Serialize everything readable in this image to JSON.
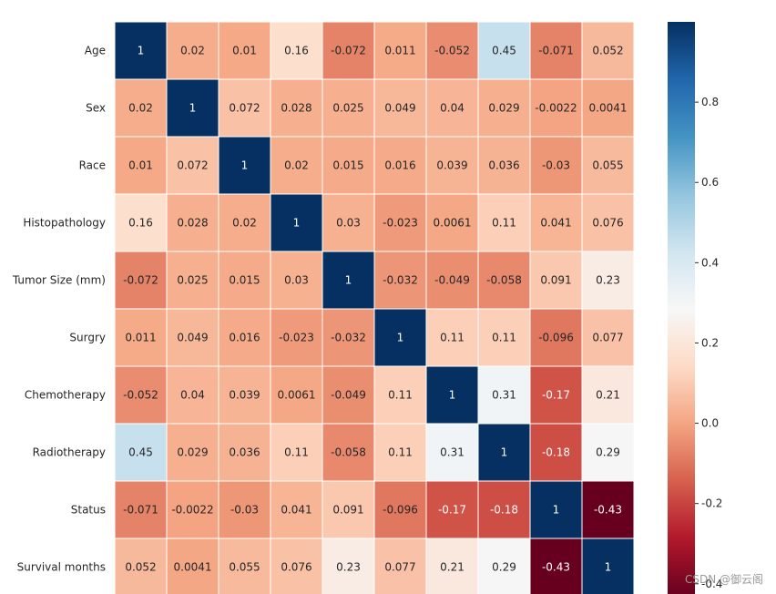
{
  "chart_data": {
    "type": "heatmap",
    "title": "",
    "xlabel": "",
    "ylabel": "",
    "labels": [
      "Age",
      "Sex",
      "Race",
      "Histopathology",
      "Tumor Size (mm)",
      "Surgry",
      "Chemotherapy",
      "Radiotherapy",
      "Status",
      "Survival months"
    ],
    "matrix": [
      [
        1,
        0.02,
        0.01,
        0.16,
        -0.072,
        0.011,
        -0.052,
        0.45,
        -0.071,
        0.052
      ],
      [
        0.02,
        1,
        0.072,
        0.028,
        0.025,
        0.049,
        0.04,
        0.029,
        -0.0022,
        0.0041
      ],
      [
        0.01,
        0.072,
        1,
        0.02,
        0.015,
        0.016,
        0.039,
        0.036,
        -0.03,
        0.055
      ],
      [
        0.16,
        0.028,
        0.02,
        1,
        0.03,
        -0.023,
        0.0061,
        0.11,
        0.041,
        0.076
      ],
      [
        -0.072,
        0.025,
        0.015,
        0.03,
        1,
        -0.032,
        -0.049,
        -0.058,
        0.091,
        0.23
      ],
      [
        0.011,
        0.049,
        0.016,
        -0.023,
        -0.032,
        1,
        0.11,
        0.11,
        -0.096,
        0.077
      ],
      [
        -0.052,
        0.04,
        0.039,
        0.0061,
        -0.049,
        0.11,
        1,
        0.31,
        -0.17,
        0.21
      ],
      [
        0.45,
        0.029,
        0.036,
        0.11,
        -0.058,
        0.11,
        0.31,
        1,
        -0.18,
        0.29
      ],
      [
        -0.071,
        -0.0022,
        -0.03,
        0.041,
        0.091,
        -0.096,
        -0.17,
        -0.18,
        1,
        -0.43
      ],
      [
        0.052,
        0.0041,
        0.055,
        0.076,
        0.23,
        0.077,
        0.21,
        0.29,
        -0.43,
        1
      ]
    ],
    "colormap": "RdBu",
    "vmin": -0.43,
    "vmax": 1,
    "colorbar_ticks": [
      -0.4,
      -0.2,
      0.0,
      0.2,
      0.4,
      0.6,
      0.8
    ],
    "colorbar_tick_labels": [
      "-0.4",
      "-0.2",
      "0.0",
      "0.2",
      "0.4",
      "0.6",
      "0.8"
    ],
    "annotations": true,
    "grid": false
  },
  "watermark": "CSDN @御云阁"
}
